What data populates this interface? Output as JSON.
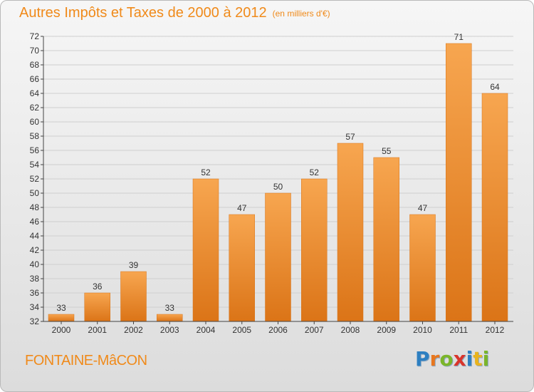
{
  "header": {
    "title": "Autres Impôts et Taxes de 2000 à 2012",
    "unit": "(en milliers d'€)"
  },
  "footer": {
    "city": "FONTAINE-MâCON",
    "brand": "Proxiti",
    "brand_letters": [
      {
        "char": "P",
        "color": "#2d7fc1"
      },
      {
        "char": "r",
        "color": "#e8771e"
      },
      {
        "char": "o",
        "color": "#7bb52a"
      },
      {
        "char": "x",
        "color": "#d9352b"
      },
      {
        "char": "i",
        "color": "#2d7fc1"
      },
      {
        "char": "t",
        "color": "#e8b31e"
      },
      {
        "char": "i",
        "color": "#7bb52a"
      }
    ]
  },
  "chart_data": {
    "type": "bar",
    "title": "Autres Impôts et Taxes de 2000 à 2012",
    "subtitle": "(en milliers d'€)",
    "xlabel": "",
    "ylabel": "",
    "categories": [
      "2000",
      "2001",
      "2002",
      "2003",
      "2004",
      "2005",
      "2006",
      "2007",
      "2008",
      "2009",
      "2010",
      "2011",
      "2012"
    ],
    "values": [
      33,
      36,
      39,
      33,
      52,
      47,
      50,
      52,
      57,
      55,
      47,
      71,
      64
    ],
    "ylim": [
      32,
      72
    ],
    "yticks": [
      32,
      34,
      36,
      38,
      40,
      42,
      44,
      46,
      48,
      50,
      52,
      54,
      56,
      58,
      60,
      62,
      64,
      66,
      68,
      70,
      72
    ],
    "grid": true,
    "legend": "none",
    "bar_color_top": "#f7a650",
    "bar_color_bottom": "#db7417",
    "accent_color": "#f08a1a"
  }
}
